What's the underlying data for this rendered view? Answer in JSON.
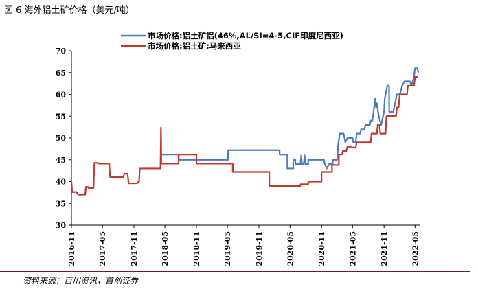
{
  "figure": {
    "title": "图 6 海外铝土矿价格（美元/吨）",
    "source": "资料来源：百川资讯，首创证券"
  },
  "chart_data": {
    "type": "line",
    "title": "",
    "xlabel": "",
    "ylabel": "",
    "ylim": [
      30,
      70
    ],
    "yticks": [
      30,
      35,
      40,
      45,
      50,
      55,
      60,
      65,
      70
    ],
    "xlim": [
      "2016-11",
      "2022-06"
    ],
    "xticks": [
      "2016-11",
      "2017-05",
      "2017-11",
      "2018-05",
      "2018-11",
      "2019-05",
      "2019-11",
      "2020-05",
      "2020-11",
      "2021-05",
      "2021-11",
      "2022-05"
    ],
    "grid": false,
    "legend_position": "top",
    "series": [
      {
        "name": "市场价格:铝土矿铝(46%,AL/SI=4-5,CIF印度尼西亚)",
        "color": "#4a7cc0",
        "points": [
          [
            "2018-04-10",
            46.2
          ],
          [
            "2018-07-20",
            46.2
          ],
          [
            "2018-07-20",
            45
          ],
          [
            "2019-05-05",
            45
          ],
          [
            "2019-05-05",
            47.2
          ],
          [
            "2020-03-01",
            47.2
          ],
          [
            "2020-03-01",
            46.2
          ],
          [
            "2020-04-15",
            46.2
          ],
          [
            "2020-04-15",
            43
          ],
          [
            "2020-05-20",
            43
          ],
          [
            "2020-05-20",
            45
          ],
          [
            "2020-06-01",
            45
          ],
          [
            "2020-06-01",
            44
          ],
          [
            "2020-07-01",
            44
          ],
          [
            "2020-07-05",
            46
          ],
          [
            "2020-07-10",
            44
          ],
          [
            "2020-07-20",
            44
          ],
          [
            "2020-07-25",
            46
          ],
          [
            "2020-07-30",
            44
          ],
          [
            "2020-08-15",
            44
          ],
          [
            "2020-08-15",
            45
          ],
          [
            "2020-11-15",
            45
          ],
          [
            "2020-11-20",
            44
          ],
          [
            "2020-12-01",
            43
          ],
          [
            "2020-12-15",
            44
          ],
          [
            "2021-01-05",
            44
          ],
          [
            "2021-01-05",
            45
          ],
          [
            "2021-02-01",
            45
          ],
          [
            "2021-02-05",
            48
          ],
          [
            "2021-02-15",
            51
          ],
          [
            "2021-03-10",
            51
          ],
          [
            "2021-03-20",
            49
          ],
          [
            "2021-04-01",
            50
          ],
          [
            "2021-05-01",
            50
          ],
          [
            "2021-05-05",
            49
          ],
          [
            "2021-05-20",
            49
          ],
          [
            "2021-05-25",
            51
          ],
          [
            "2021-06-15",
            51
          ],
          [
            "2021-06-20",
            52
          ],
          [
            "2021-07-10",
            52
          ],
          [
            "2021-07-15",
            53
          ],
          [
            "2021-08-10",
            53
          ],
          [
            "2021-08-15",
            54
          ],
          [
            "2021-08-25",
            54
          ],
          [
            "2021-09-01",
            56
          ],
          [
            "2021-09-10",
            59
          ],
          [
            "2021-09-15",
            57
          ],
          [
            "2021-09-20",
            58
          ],
          [
            "2021-10-01",
            55
          ],
          [
            "2021-10-15",
            53
          ],
          [
            "2021-11-01",
            56
          ],
          [
            "2021-11-05",
            59
          ],
          [
            "2021-11-20",
            62
          ],
          [
            "2021-11-30",
            62
          ],
          [
            "2021-12-01",
            56
          ],
          [
            "2021-12-25",
            56
          ],
          [
            "2022-01-15",
            60
          ],
          [
            "2022-02-01",
            60
          ],
          [
            "2022-02-15",
            62
          ],
          [
            "2022-03-01",
            63
          ],
          [
            "2022-04-01",
            63
          ],
          [
            "2022-04-10",
            62
          ],
          [
            "2022-04-25",
            64
          ],
          [
            "2022-05-01",
            66
          ],
          [
            "2022-05-15",
            66
          ],
          [
            "2022-05-20",
            65
          ]
        ]
      },
      {
        "name": "市场价格:铝土矿:马来西亚",
        "color": "#c0392b",
        "points": [
          [
            "2016-11-01",
            40
          ],
          [
            "2016-11-05",
            37.6
          ],
          [
            "2016-12-01",
            37.6
          ],
          [
            "2016-12-10",
            37
          ],
          [
            "2017-01-20",
            37
          ],
          [
            "2017-01-25",
            38.8
          ],
          [
            "2017-02-05",
            38.8
          ],
          [
            "2017-02-10",
            38.5
          ],
          [
            "2017-03-10",
            38.5
          ],
          [
            "2017-03-15",
            44.3
          ],
          [
            "2017-04-05",
            44.3
          ],
          [
            "2017-04-10",
            44.1
          ],
          [
            "2017-06-10",
            44.1
          ],
          [
            "2017-06-15",
            41
          ],
          [
            "2017-09-01",
            41
          ],
          [
            "2017-09-05",
            41.8
          ],
          [
            "2017-09-25",
            41.8
          ],
          [
            "2017-10-01",
            39.6
          ],
          [
            "2017-11-20",
            39.6
          ],
          [
            "2017-11-25",
            40
          ],
          [
            "2017-12-01",
            40
          ],
          [
            "2017-12-05",
            43
          ],
          [
            "2018-04-05",
            43
          ],
          [
            "2018-04-08",
            52.4
          ],
          [
            "2018-04-10",
            44.1
          ],
          [
            "2018-07-20",
            44.1
          ],
          [
            "2018-07-20",
            46.2
          ],
          [
            "2018-11-01",
            46.2
          ],
          [
            "2018-11-01",
            44.1
          ],
          [
            "2019-06-01",
            44.1
          ],
          [
            "2019-06-01",
            42.2
          ],
          [
            "2020-01-01",
            42.2
          ],
          [
            "2020-01-01",
            39
          ],
          [
            "2020-07-01",
            39
          ],
          [
            "2020-07-01",
            39.4
          ],
          [
            "2020-08-15",
            39.4
          ],
          [
            "2020-08-15",
            40
          ],
          [
            "2020-11-01",
            40
          ],
          [
            "2020-11-01",
            42.2
          ],
          [
            "2021-01-01",
            42.2
          ],
          [
            "2021-01-01",
            43.8
          ],
          [
            "2021-02-10",
            43.8
          ],
          [
            "2021-02-10",
            46.2
          ],
          [
            "2021-03-01",
            46.2
          ],
          [
            "2021-03-05",
            47
          ],
          [
            "2021-03-25",
            47
          ],
          [
            "2021-04-01",
            48
          ],
          [
            "2021-04-25",
            48
          ],
          [
            "2021-05-01",
            47.8
          ],
          [
            "2021-05-20",
            47.8
          ],
          [
            "2021-05-25",
            49
          ],
          [
            "2021-08-15",
            49
          ],
          [
            "2021-08-20",
            51
          ],
          [
            "2021-09-20",
            51
          ],
          [
            "2021-09-25",
            53
          ],
          [
            "2021-10-05",
            53
          ],
          [
            "2021-10-10",
            51
          ],
          [
            "2021-11-10",
            51
          ],
          [
            "2021-11-15",
            55
          ],
          [
            "2022-01-10",
            55
          ],
          [
            "2022-01-15",
            57
          ],
          [
            "2022-01-25",
            57
          ],
          [
            "2022-02-01",
            60
          ],
          [
            "2022-03-15",
            60
          ],
          [
            "2022-03-20",
            62
          ],
          [
            "2022-04-25",
            62
          ],
          [
            "2022-05-01",
            64
          ],
          [
            "2022-05-20",
            64
          ]
        ]
      }
    ]
  }
}
